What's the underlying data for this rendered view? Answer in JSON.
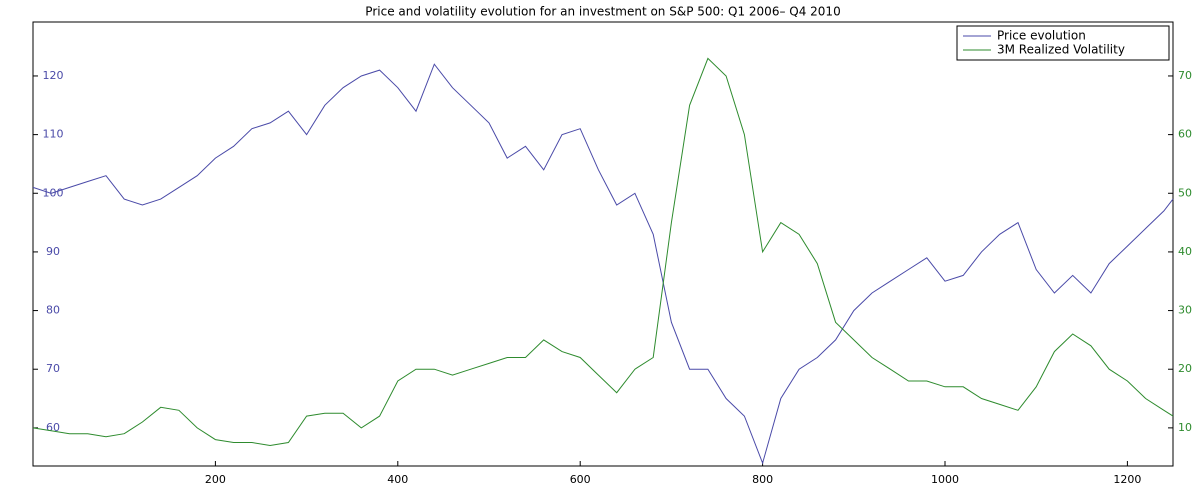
{
  "chart_data": {
    "type": "line",
    "title": "Price and volatility evolution for an investment on S&P 500: Q1 2006– Q4 2010",
    "x": [
      0,
      20,
      40,
      60,
      80,
      100,
      120,
      140,
      160,
      180,
      200,
      220,
      240,
      260,
      280,
      300,
      320,
      340,
      360,
      380,
      400,
      420,
      440,
      460,
      480,
      500,
      520,
      540,
      560,
      580,
      600,
      620,
      640,
      660,
      680,
      700,
      720,
      740,
      760,
      780,
      800,
      820,
      840,
      860,
      880,
      900,
      920,
      940,
      960,
      980,
      1000,
      1020,
      1040,
      1060,
      1080,
      1100,
      1120,
      1140,
      1160,
      1180,
      1200,
      1220,
      1240,
      1250
    ],
    "series": [
      {
        "name": "Price evolution",
        "color": "#4a4aa8",
        "axis": "y",
        "values": [
          101,
          100,
          101,
          102,
          103,
          99,
          98,
          99,
          101,
          103,
          106,
          108,
          111,
          112,
          114,
          110,
          115,
          118,
          120,
          121,
          118,
          114,
          122,
          118,
          115,
          112,
          106,
          108,
          104,
          110,
          111,
          104,
          98,
          100,
          93,
          78,
          70,
          70,
          65,
          62,
          54,
          65,
          70,
          72,
          75,
          80,
          83,
          85,
          87,
          89,
          85,
          86,
          90,
          93,
          95,
          87,
          83,
          86,
          83,
          88,
          91,
          94,
          97,
          99
        ]
      },
      {
        "name": "3M Realized Volatility",
        "color": "#2e8b2e",
        "axis": "y2",
        "values": [
          10,
          9.5,
          9,
          9,
          8.5,
          9,
          11,
          13.5,
          13,
          10,
          8,
          7.5,
          7.5,
          7,
          7.5,
          12,
          12.5,
          12.5,
          10,
          12,
          18,
          20,
          20,
          19,
          20,
          21,
          22,
          22,
          25,
          23,
          22,
          19,
          16,
          20,
          22,
          45,
          65,
          73,
          70,
          60,
          40,
          45,
          43,
          38,
          28,
          25,
          22,
          20,
          18,
          18,
          17,
          17,
          15,
          14,
          13,
          17,
          23,
          26,
          24,
          20,
          18,
          15,
          13,
          12
        ]
      }
    ],
    "xlim": [
      0,
      1250
    ],
    "xticks": [
      200,
      400,
      600,
      800,
      1000,
      1200
    ],
    "ylim": [
      53.5,
      129.2
    ],
    "yticks": [
      60,
      70,
      80,
      90,
      100,
      110,
      120
    ],
    "y2lim": [
      3.5,
      79.2
    ],
    "y2ticks": [
      10,
      20,
      30,
      40,
      50,
      60,
      70
    ],
    "legend": "upper right"
  }
}
